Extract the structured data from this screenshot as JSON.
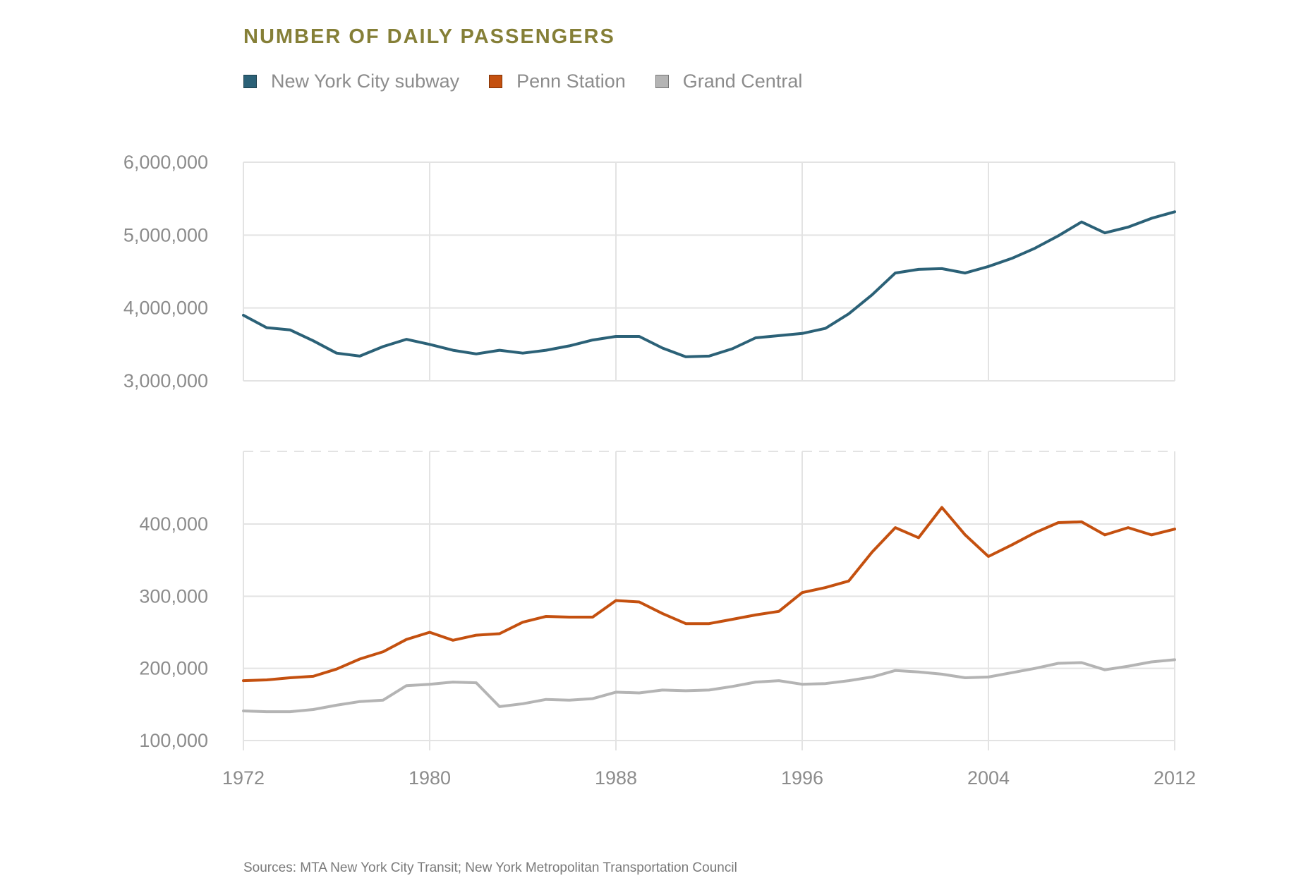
{
  "chart_data": {
    "type": "line",
    "title": "NUMBER OF DAILY PASSENGERS",
    "legend": [
      {
        "name": "New York City subway",
        "color": "#2b6177"
      },
      {
        "name": "Penn Station",
        "color": "#c4500f"
      },
      {
        "name": "Grand Central",
        "color": "#b4b4b4"
      }
    ],
    "legend_placement": "top-left",
    "grid": true,
    "axis_break": "broken y-axis between 400,000 and 3,000,000",
    "x_ticks": [
      "1972",
      "1980",
      "1988",
      "1996",
      "2004",
      "2012"
    ],
    "x_range": [
      1972,
      2012
    ],
    "y_ticks_upper": [
      {
        "value": 3000000,
        "label": "3,000,000"
      },
      {
        "value": 4000000,
        "label": "4,000,000"
      },
      {
        "value": 5000000,
        "label": "5,000,000"
      },
      {
        "value": 6000000,
        "label": "6,000,000"
      }
    ],
    "y_ticks_lower": [
      {
        "value": 100000,
        "label": "100,000"
      },
      {
        "value": 200000,
        "label": "200,000"
      },
      {
        "value": 300000,
        "label": "300,000"
      },
      {
        "value": 400000,
        "label": "400,000"
      }
    ],
    "x": [
      1972,
      1973,
      1974,
      1975,
      1976,
      1977,
      1978,
      1979,
      1980,
      1981,
      1982,
      1983,
      1984,
      1985,
      1986,
      1987,
      1988,
      1989,
      1990,
      1991,
      1992,
      1993,
      1994,
      1995,
      1996,
      1997,
      1998,
      1999,
      2000,
      2001,
      2002,
      2003,
      2004,
      2005,
      2006,
      2007,
      2008,
      2009,
      2010,
      2011,
      2012
    ],
    "series": [
      {
        "name": "New York City subway",
        "color": "#2b6177",
        "values": [
          3900000,
          3730000,
          3700000,
          3550000,
          3380000,
          3340000,
          3470000,
          3570000,
          3500000,
          3420000,
          3370000,
          3420000,
          3380000,
          3420000,
          3480000,
          3560000,
          3610000,
          3610000,
          3450000,
          3330000,
          3340000,
          3440000,
          3590000,
          3620000,
          3650000,
          3720000,
          3920000,
          4180000,
          4480000,
          4530000,
          4540000,
          4480000,
          4570000,
          4680000,
          4820000,
          4990000,
          5180000,
          5030000,
          5110000,
          5230000,
          5320000
        ]
      },
      {
        "name": "Penn Station",
        "color": "#c4500f",
        "values": [
          183000,
          184000,
          187000,
          189000,
          199000,
          213000,
          223000,
          240000,
          250000,
          239000,
          246000,
          248000,
          264000,
          272000,
          271000,
          271000,
          294000,
          292000,
          276000,
          262000,
          262000,
          268000,
          274000,
          279000,
          305000,
          312000,
          321000,
          361000,
          395000,
          381000,
          423000,
          385000,
          355000,
          371000,
          388000,
          402000,
          403000,
          385000,
          395000,
          385000,
          393000
        ]
      },
      {
        "name": "Grand Central",
        "color": "#b4b4b4",
        "values": [
          141000,
          140000,
          140000,
          143000,
          149000,
          154000,
          156000,
          176000,
          178000,
          181000,
          180000,
          147000,
          151000,
          157000,
          156000,
          158000,
          167000,
          166000,
          170000,
          169000,
          170000,
          175000,
          181000,
          183000,
          178000,
          179000,
          183000,
          188000,
          197000,
          195000,
          192000,
          187000,
          188000,
          194000,
          200000,
          207000,
          208000,
          198000,
          203000,
          209000,
          212000
        ]
      }
    ]
  },
  "source": "Sources: MTA New York City Transit; New York Metropolitan Transportation Council"
}
